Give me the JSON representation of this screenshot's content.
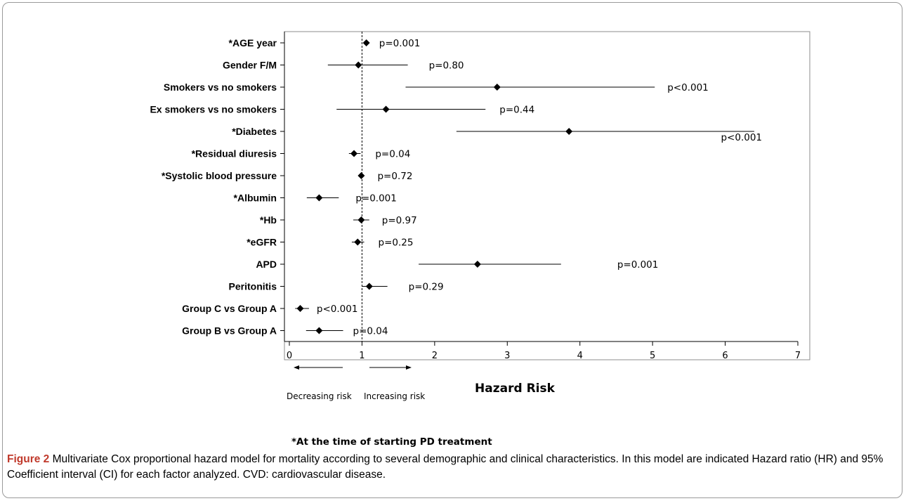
{
  "chart_data": {
    "type": "forest",
    "title": "",
    "xlabel": "Hazard Risk",
    "ylabel": "",
    "xlim": [
      0,
      7
    ],
    "xticks": [
      "0",
      "1",
      "2",
      "3",
      "4",
      "5",
      "6",
      "7"
    ],
    "reference_line": 1,
    "direction_labels": {
      "left": "Decreasing risk",
      "right": "Increasing risk"
    },
    "rows": [
      {
        "label": "*AGE year",
        "hr": 1.06,
        "lo": 1.02,
        "hi": 1.1,
        "p": "p=0.001"
      },
      {
        "label": "Gender  F/M",
        "hr": 0.95,
        "lo": 0.53,
        "hi": 1.63,
        "p": "p=0.80"
      },
      {
        "label": "Smokers vs no smokers",
        "hr": 2.86,
        "lo": 1.6,
        "hi": 5.03,
        "p": "p<0.001"
      },
      {
        "label": "Ex smokers vs no smokers",
        "hr": 1.33,
        "lo": 0.65,
        "hi": 2.7,
        "p": "p=0.44"
      },
      {
        "label": "*Diabetes",
        "hr": 3.85,
        "lo": 2.3,
        "hi": 6.4,
        "p": "p<0.001"
      },
      {
        "label": "*Residual  diuresis",
        "hr": 0.89,
        "lo": 0.82,
        "hi": 0.98,
        "p": "p=0.04"
      },
      {
        "label": "*Systolic blood pressure",
        "hr": 0.99,
        "lo": 0.96,
        "hi": 1.02,
        "p": "p=0.72"
      },
      {
        "label": "*Albumin",
        "hr": 0.41,
        "lo": 0.24,
        "hi": 0.68,
        "p": "p=0.001"
      },
      {
        "label": "*Hb",
        "hr": 0.99,
        "lo": 0.88,
        "hi": 1.1,
        "p": "p=0.97"
      },
      {
        "label": "*eGFR",
        "hr": 0.94,
        "lo": 0.86,
        "hi": 1.03,
        "p": "p=0.25"
      },
      {
        "label": "APD",
        "hr": 2.59,
        "lo": 1.78,
        "hi": 3.74,
        "p": "p=0.001"
      },
      {
        "label": "Peritonitis",
        "hr": 1.1,
        "lo": 1.0,
        "hi": 1.35,
        "p": "p=0.29"
      },
      {
        "label": "Group C vs Group A",
        "hr": 0.15,
        "lo": 0.08,
        "hi": 0.27,
        "p": "p<0.001"
      },
      {
        "label": "Group B vs Group A",
        "hr": 0.41,
        "lo": 0.23,
        "hi": 0.74,
        "p": "p=0.04"
      }
    ],
    "footnote": "*At the time of starting PD treatment"
  },
  "caption": {
    "figure_label": "Figure 2",
    "text": " Multivariate Cox proportional hazard model for mortality according to several demographic and clinical characteristics. In this model are indicated Hazard ratio (HR) and 95% Coefficient interval (CI) for each factor analyzed. CVD: cardiovascular disease."
  }
}
